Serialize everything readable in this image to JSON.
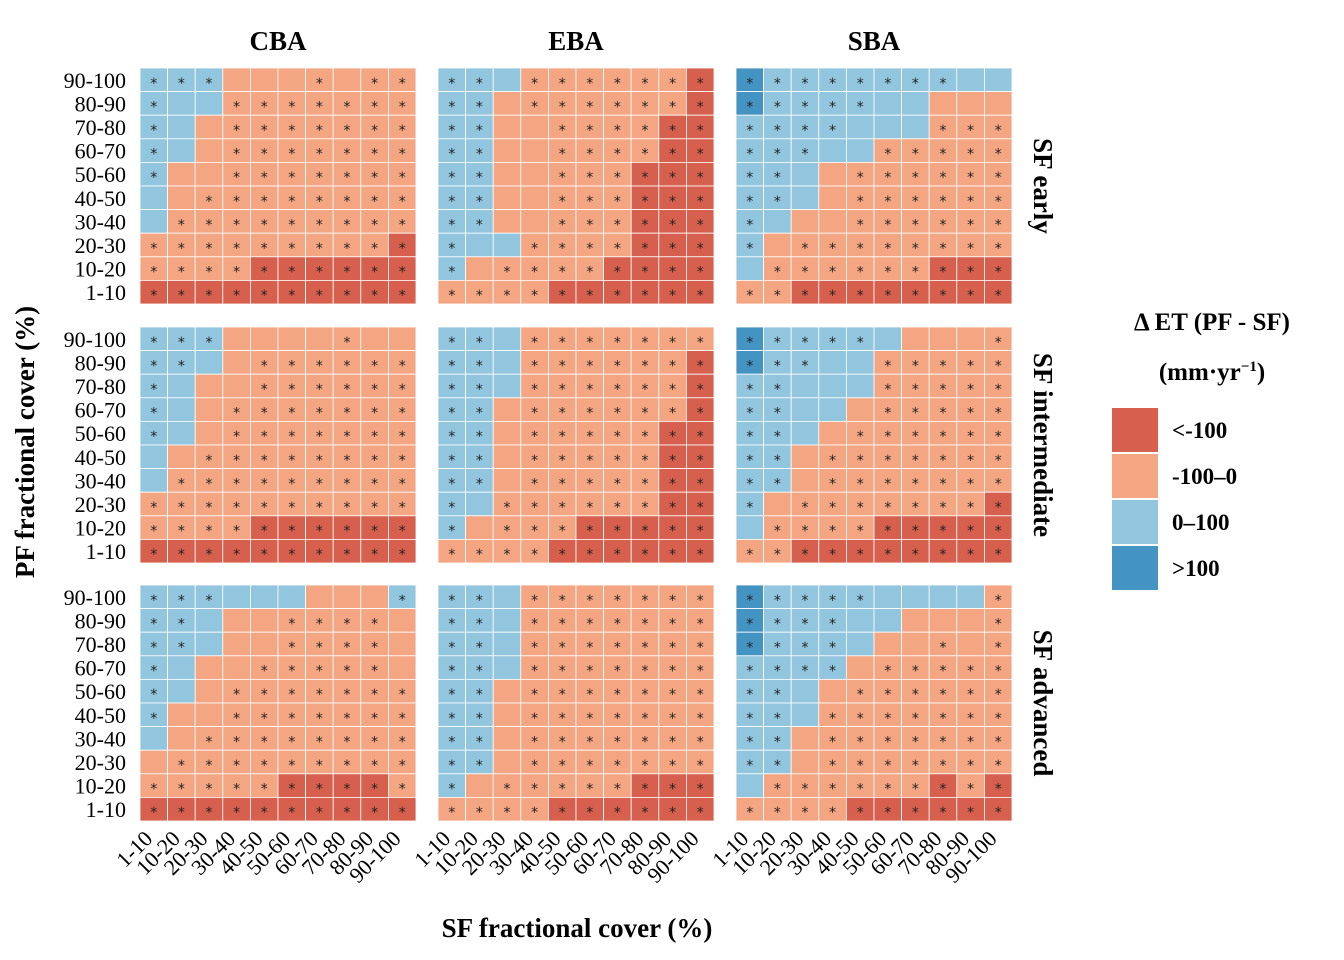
{
  "chart_data": {
    "type": "heatmap",
    "column_facets": [
      "CBA",
      "EBA",
      "SBA"
    ],
    "row_facets": [
      "SF early",
      "SF intermediate",
      "SF advanced"
    ],
    "xlabel": "SF fractional cover (%)",
    "ylabel": "PF fractional cover (%)",
    "categories": [
      "1-10",
      "10-20",
      "20-30",
      "30-40",
      "40-50",
      "50-60",
      "60-70",
      "70-80",
      "80-90",
      "90-100"
    ],
    "legend": {
      "title_line1": "Δ ET (PF - SF)",
      "title_line2_base": "(mm·yr",
      "title_line2_sup": "−1",
      "title_line2_end": ")",
      "placement": "right",
      "classes": [
        {
          "code": 0,
          "label": "<-100",
          "color": "#d6604d"
        },
        {
          "code": 1,
          "label": "-100–0",
          "color": "#f4a582"
        },
        {
          "code": 2,
          "label": "0–100",
          "color": "#92c5de"
        },
        {
          "code": 3,
          "label": ">100",
          "color": "#4393c3"
        }
      ]
    },
    "encoding": "category code per cell; rows listed top (PF 90-100) to bottom (PF 1-10), columns left (SF 1-10) to right (SF 90-100); sig marks '*' as 1/0",
    "panels": [
      {
        "col": "CBA",
        "row": "SF early",
        "codes": [
          "2221111111",
          "2221111111",
          "2211111111",
          "2211111111",
          "2111111111",
          "2111111111",
          "2111111111",
          "1111111110",
          "1111000000",
          "0000000000"
        ],
        "sig": [
          "1110001011",
          "1001111111",
          "1001111111",
          "1001111111",
          "1001111111",
          "0011111111",
          "0111111111",
          "1111111111",
          "1111111111",
          "1111111111"
        ]
      },
      {
        "col": "EBA",
        "row": "SF early",
        "codes": [
          "2221111110",
          "2211111110",
          "2211111100",
          "2211111100",
          "2211111000",
          "2211111000",
          "2211111000",
          "2221111000",
          "2111110000",
          "1111000000"
        ],
        "sig": [
          "1101111111",
          "1101111111",
          "1100111111",
          "1100111111",
          "1100111111",
          "1100111111",
          "1100111111",
          "1001111111",
          "1011111111",
          "1111111111"
        ]
      },
      {
        "col": "SBA",
        "row": "SF early",
        "codes": [
          "3222222222",
          "3222222111",
          "2222222111",
          "2222211111",
          "2221111111",
          "2221111111",
          "2211111111",
          "2111111111",
          "2111111000",
          "1100000000"
        ],
        "sig": [
          "1111111100",
          "1111100000",
          "1111000111",
          "1110011111",
          "1100111111",
          "1100111111",
          "1000111111",
          "1011111111",
          "0111111111",
          "1111111111"
        ]
      },
      {
        "col": "CBA",
        "row": "SF intermediate",
        "codes": [
          "2221111111",
          "2221111111",
          "2211111111",
          "2211111111",
          "2211111111",
          "2111111111",
          "2111111111",
          "1111111111",
          "1111000000",
          "0000000000"
        ],
        "sig": [
          "1110000100",
          "1100111111",
          "1000111111",
          "1001111111",
          "1001111111",
          "0011111111",
          "0111111111",
          "1111111111",
          "1111111111",
          "1111111111"
        ]
      },
      {
        "col": "EBA",
        "row": "SF intermediate",
        "codes": [
          "2221111111",
          "2221111110",
          "2221111110",
          "2211111110",
          "2211111100",
          "2211111100",
          "2211111100",
          "2211111100",
          "2111100000",
          "1111000000"
        ],
        "sig": [
          "1101111111",
          "1101111111",
          "1101111111",
          "1101111111",
          "1101111111",
          "1101111111",
          "1101111111",
          "1011111111",
          "1011111111",
          "1111111111"
        ]
      },
      {
        "col": "SBA",
        "row": "SF intermediate",
        "codes": [
          "3222221111",
          "3222211111",
          "2222211111",
          "2222111111",
          "2221111111",
          "2211111111",
          "2211111111",
          "2111111110",
          "2111100000",
          "1100000000"
        ],
        "sig": [
          "1111100001",
          "1110011111",
          "1100011111",
          "1100011111",
          "1100111111",
          "1101111111",
          "1101111111",
          "1011111111",
          "0111111111",
          "1111111111"
        ]
      },
      {
        "col": "CBA",
        "row": "SF advanced",
        "codes": [
          "2222221112",
          "2221111111",
          "2221111111",
          "2211111111",
          "2211111111",
          "2111111111",
          "2111111111",
          "1111111111",
          "1111100001",
          "0000000000"
        ],
        "sig": [
          "1110000001",
          "1100011110",
          "1100011110",
          "1000111110",
          "1001111111",
          "1001111111",
          "0011111111",
          "0111111111",
          "1111111111",
          "1111111111"
        ]
      },
      {
        "col": "EBA",
        "row": "SF advanced",
        "codes": [
          "2221111111",
          "2221111111",
          "2221111111",
          "2221111111",
          "2211111111",
          "2211111111",
          "2211111111",
          "2211111111",
          "2111111000",
          "1111000000"
        ],
        "sig": [
          "1101111111",
          "1101111111",
          "1101111111",
          "1101111111",
          "1101111111",
          "1101111111",
          "1101111111",
          "1101111111",
          "1011111111",
          "1111111111"
        ]
      },
      {
        "col": "SBA",
        "row": "SF advanced",
        "codes": [
          "3222222221",
          "3222221111",
          "3222211111",
          "2222111111",
          "2221111111",
          "2221111111",
          "2211111111",
          "2211111111",
          "2111111010",
          "1111000000"
        ],
        "sig": [
          "1111100001",
          "1111000001",
          "1111000101",
          "1111011111",
          "1100111111",
          "1101111111",
          "1101111111",
          "1101111111",
          "0111111111",
          "1111111111"
        ]
      }
    ]
  }
}
